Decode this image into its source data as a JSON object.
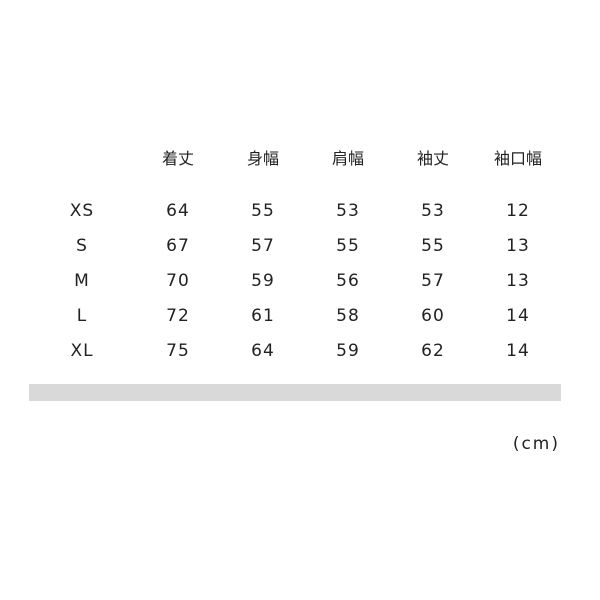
{
  "table": {
    "headers": [
      "",
      "着丈",
      "身幅",
      "肩幅",
      "袖丈",
      "袖口幅"
    ],
    "rows": [
      [
        "XS",
        "64",
        "55",
        "53",
        "53",
        "12"
      ],
      [
        "S",
        "67",
        "57",
        "55",
        "55",
        "13"
      ],
      [
        "M",
        "70",
        "59",
        "56",
        "57",
        "13"
      ],
      [
        "L",
        "72",
        "61",
        "58",
        "60",
        "14"
      ],
      [
        "XL",
        "75",
        "64",
        "59",
        "62",
        "14"
      ]
    ]
  },
  "unit_label": "(cm)",
  "colors": {
    "text": "#222222",
    "divider_bar": "#d9d9d9"
  }
}
